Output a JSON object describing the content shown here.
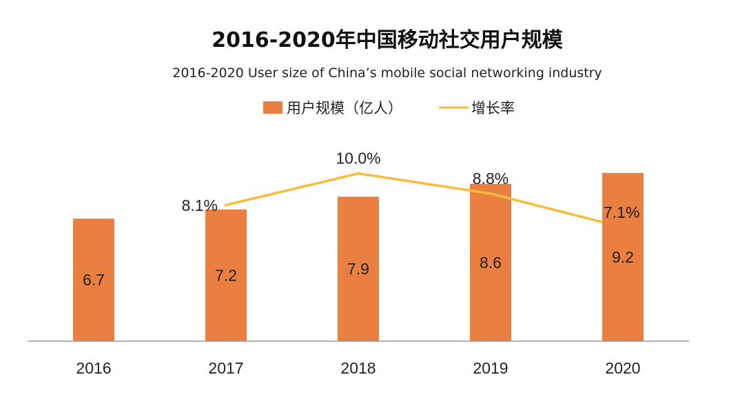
{
  "colors": {
    "bar": "#E97F41",
    "line": "#F7BC3A",
    "axis": "#999999",
    "text": "#222222"
  },
  "chart_data": {
    "type": "bar",
    "title": "2016-2020年中国移动社交用户规模",
    "subtitle": "2016-2020 User size of China’s mobile social networking industry",
    "legend_position": "top-center",
    "grid": false,
    "categories": [
      "2016",
      "2017",
      "2018",
      "2019",
      "2020"
    ],
    "ylim": [
      0,
      13
    ],
    "series": [
      {
        "name": "用户规模（亿人）",
        "type": "bar",
        "values": [
          6.7,
          7.2,
          7.9,
          8.6,
          9.2
        ],
        "labels": [
          "6.7",
          "7.2",
          "7.9",
          "8.6",
          "9.2"
        ]
      },
      {
        "name": "增长率",
        "type": "line",
        "values": [
          null,
          8.1,
          10.0,
          8.8,
          7.1
        ],
        "labels": [
          "",
          "8.1%",
          "10.0%",
          "8.8%",
          "7.1%"
        ],
        "ylim": [
          0,
          15
        ]
      }
    ]
  }
}
